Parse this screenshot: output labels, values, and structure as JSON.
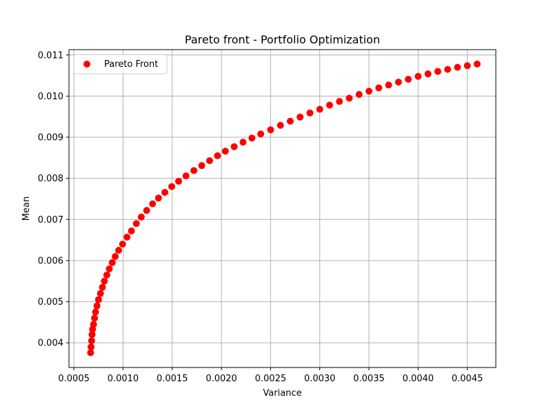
{
  "chart_data": {
    "type": "scatter",
    "title": "Pareto front - Portfolio Optimization",
    "xlabel": "Variance",
    "ylabel": "Mean",
    "xlim": [
      0.00045,
      0.00479
    ],
    "ylim": [
      0.0034,
      0.01113
    ],
    "grid": true,
    "legend_position": "upper-left",
    "x_ticks": [
      0.0005,
      0.001,
      0.0015,
      0.002,
      0.0025,
      0.003,
      0.0035,
      0.004,
      0.0045
    ],
    "x_tick_labels": [
      "0.0005",
      "0.0010",
      "0.0015",
      "0.0020",
      "0.0025",
      "0.0030",
      "0.0035",
      "0.0040",
      "0.0045"
    ],
    "y_ticks": [
      0.004,
      0.005,
      0.006,
      0.007,
      0.008,
      0.009,
      0.01,
      0.011
    ],
    "y_tick_labels": [
      "0.004",
      "0.005",
      "0.006",
      "0.007",
      "0.008",
      "0.009",
      "0.010",
      "0.011"
    ],
    "series": [
      {
        "name": "Pareto Front",
        "color": "#ff0000",
        "points": [
          [
            0.00067,
            0.00376
          ],
          [
            0.000675,
            0.0039
          ],
          [
            0.00068,
            0.00405
          ],
          [
            0.000685,
            0.0042
          ],
          [
            0.00069,
            0.00433
          ],
          [
            0.0007,
            0.00445
          ],
          [
            0.00071,
            0.0046
          ],
          [
            0.00072,
            0.00475
          ],
          [
            0.000735,
            0.0049
          ],
          [
            0.00075,
            0.00505
          ],
          [
            0.00077,
            0.0052
          ],
          [
            0.00079,
            0.00535
          ],
          [
            0.00081,
            0.0055
          ],
          [
            0.000835,
            0.00565
          ],
          [
            0.00086,
            0.0058
          ],
          [
            0.00089,
            0.00595
          ],
          [
            0.00092,
            0.0061
          ],
          [
            0.000955,
            0.00625
          ],
          [
            0.000995,
            0.0064
          ],
          [
            0.00104,
            0.00657
          ],
          [
            0.001085,
            0.00672
          ],
          [
            0.001135,
            0.0069
          ],
          [
            0.001185,
            0.00706
          ],
          [
            0.00124,
            0.00722
          ],
          [
            0.0013,
            0.00738
          ],
          [
            0.00136,
            0.00752
          ],
          [
            0.001425,
            0.00766
          ],
          [
            0.001495,
            0.0078
          ],
          [
            0.001565,
            0.00793
          ],
          [
            0.00164,
            0.00806
          ],
          [
            0.00172,
            0.00819
          ],
          [
            0.0018,
            0.00831
          ],
          [
            0.00188,
            0.00843
          ],
          [
            0.00196,
            0.00855
          ],
          [
            0.00204,
            0.00866
          ],
          [
            0.00213,
            0.00877
          ],
          [
            0.00222,
            0.00888
          ],
          [
            0.00231,
            0.00898
          ],
          [
            0.0024,
            0.00908
          ],
          [
            0.0025,
            0.00918
          ],
          [
            0.0026,
            0.00929
          ],
          [
            0.0027,
            0.00939
          ],
          [
            0.0028,
            0.00949
          ],
          [
            0.0029,
            0.00959
          ],
          [
            0.003,
            0.00968
          ],
          [
            0.0031,
            0.00978
          ],
          [
            0.0032,
            0.00987
          ],
          [
            0.0033,
            0.00995
          ],
          [
            0.0034,
            0.01004
          ],
          [
            0.0035,
            0.01012
          ],
          [
            0.0036,
            0.0102
          ],
          [
            0.0037,
            0.01027
          ],
          [
            0.0038,
            0.01034
          ],
          [
            0.0039,
            0.01041
          ],
          [
            0.004,
            0.01048
          ],
          [
            0.0041,
            0.01054
          ],
          [
            0.0042,
            0.0106
          ],
          [
            0.0043,
            0.01065
          ],
          [
            0.0044,
            0.0107
          ],
          [
            0.0045,
            0.01074
          ],
          [
            0.0046,
            0.01078
          ]
        ]
      }
    ]
  }
}
